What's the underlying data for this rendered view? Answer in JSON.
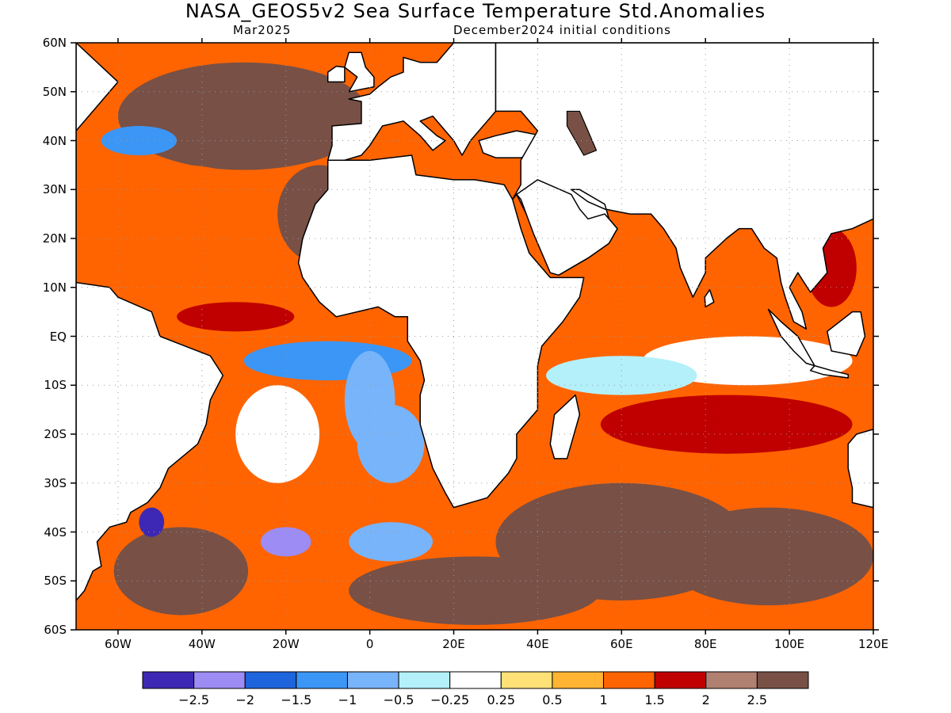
{
  "title": "NASA_GEOS5v2 Sea Surface Temperature Std.Anomalies",
  "subtitle_left": "Mar2025",
  "subtitle_right": "December2024 initial conditions",
  "lat_labels": [
    "60N",
    "50N",
    "40N",
    "30N",
    "20N",
    "10N",
    "EQ",
    "10S",
    "20S",
    "30S",
    "40S",
    "50S",
    "60S"
  ],
  "lon_labels": [
    "60W",
    "40W",
    "20W",
    "0",
    "20E",
    "40E",
    "60E",
    "80E",
    "100E",
    "120E"
  ],
  "colorbar": {
    "colors": [
      "#3c28b4",
      "#9c8cf4",
      "#1e64dc",
      "#3c96f5",
      "#78b4fa",
      "#b4f0fa",
      "#ffffff",
      "#ffe178",
      "#ffb432",
      "#ff6400",
      "#c00000",
      "#b08070",
      "#785046"
    ],
    "labels": [
      "-2.5",
      "-2",
      "-1.5",
      "-1",
      "-0.5",
      "-0.25",
      "0.25",
      "0.5",
      "1",
      "1.5",
      "2",
      "2.5"
    ]
  },
  "map": {
    "region": {
      "lon_min": -70,
      "lon_max": 120,
      "lat_min": -60,
      "lat_max": 60
    },
    "colors": {
      "land": "#ffffff",
      "coastline": "#000000",
      "grid": "#9a9a9a"
    },
    "anomaly_regions": [
      {
        "lon": -30,
        "lat": 45,
        "rx": 30,
        "ry": 11,
        "cls": 12
      },
      {
        "lon": -12,
        "lat": 25,
        "rx": 10,
        "ry": 10,
        "cls": 12
      },
      {
        "lon": -55,
        "lat": 40,
        "rx": 9,
        "ry": 3,
        "cls": 3
      },
      {
        "lon": -45,
        "lat": 25,
        "rx": 22,
        "ry": 10,
        "cls": 9
      },
      {
        "lon": -35,
        "lat": 8,
        "rx": 22,
        "ry": 6,
        "cls": 9
      },
      {
        "lon": -32,
        "lat": 4,
        "rx": 14,
        "ry": 3,
        "cls": 10
      },
      {
        "lon": -10,
        "lat": -5,
        "rx": 20,
        "ry": 4,
        "cls": 3
      },
      {
        "lon": 0,
        "lat": -13,
        "rx": 6,
        "ry": 10,
        "cls": 4
      },
      {
        "lon": 5,
        "lat": -22,
        "rx": 8,
        "ry": 8,
        "cls": 4
      },
      {
        "lon": -22,
        "lat": -20,
        "rx": 10,
        "ry": 10,
        "cls": 6
      },
      {
        "lon": -45,
        "lat": -48,
        "rx": 16,
        "ry": 9,
        "cls": 12
      },
      {
        "lon": -52,
        "lat": -38,
        "rx": 3,
        "ry": 3,
        "cls": 0
      },
      {
        "lon": -20,
        "lat": -42,
        "rx": 6,
        "ry": 3,
        "cls": 1
      },
      {
        "lon": 5,
        "lat": -42,
        "rx": 10,
        "ry": 4,
        "cls": 4
      },
      {
        "lon": 25,
        "lat": -52,
        "rx": 30,
        "ry": 7,
        "cls": 12
      },
      {
        "lon": 60,
        "lat": -42,
        "rx": 30,
        "ry": 12,
        "cls": 12
      },
      {
        "lon": 95,
        "lat": -45,
        "rx": 25,
        "ry": 10,
        "cls": 12
      },
      {
        "lon": 85,
        "lat": -18,
        "rx": 30,
        "ry": 6,
        "cls": 10
      },
      {
        "lon": 90,
        "lat": -5,
        "rx": 25,
        "ry": 5,
        "cls": 6
      },
      {
        "lon": 60,
        "lat": -8,
        "rx": 18,
        "ry": 4,
        "cls": 5
      },
      {
        "lon": 62,
        "lat": 10,
        "rx": 8,
        "ry": 6,
        "cls": 9
      },
      {
        "lon": 88,
        "lat": 12,
        "rx": 6,
        "ry": 7,
        "cls": 9
      },
      {
        "lon": 110,
        "lat": 14,
        "rx": 6,
        "ry": 8,
        "cls": 10
      }
    ]
  }
}
